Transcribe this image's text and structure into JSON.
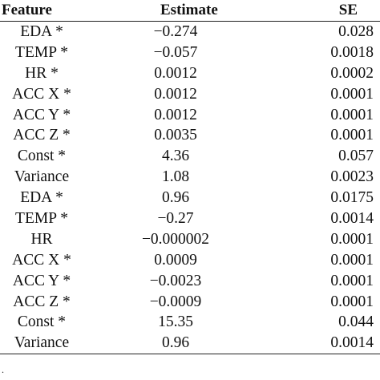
{
  "table": {
    "headers": {
      "feature": "Feature",
      "estimate": "Estimate",
      "se": "SE"
    },
    "rows": [
      {
        "feature": "EDA *",
        "estimate": "−0.274",
        "se": "0.028"
      },
      {
        "feature": "TEMP *",
        "estimate": "−0.057",
        "se": "0.0018"
      },
      {
        "feature": "HR *",
        "estimate": "0.0012",
        "se": "0.0002"
      },
      {
        "feature": "ACC X *",
        "estimate": "0.0012",
        "se": "0.0001"
      },
      {
        "feature": "ACC Y *",
        "estimate": "0.0012",
        "se": "0.0001"
      },
      {
        "feature": "ACC Z *",
        "estimate": "0.0035",
        "se": "0.0001"
      },
      {
        "feature": "Const *",
        "estimate": "4.36",
        "se": "0.057"
      },
      {
        "feature": "Variance",
        "estimate": "1.08",
        "se": "0.0023"
      },
      {
        "feature": "EDA *",
        "estimate": "0.96",
        "se": "0.0175"
      },
      {
        "feature": "TEMP *",
        "estimate": "−0.27",
        "se": "0.0014"
      },
      {
        "feature": "HR",
        "estimate": "−0.000002",
        "se": "0.0001"
      },
      {
        "feature": "ACC X *",
        "estimate": "0.0009",
        "se": "0.0001"
      },
      {
        "feature": "ACC Y *",
        "estimate": "−0.0023",
        "se": "0.0001"
      },
      {
        "feature": "ACC Z *",
        "estimate": "−0.0009",
        "se": "0.0001"
      },
      {
        "feature": "Const *",
        "estimate": "15.35",
        "se": "0.044"
      },
      {
        "feature": "Variance",
        "estimate": "0.96",
        "se": "0.0014"
      }
    ],
    "footnote": "."
  }
}
